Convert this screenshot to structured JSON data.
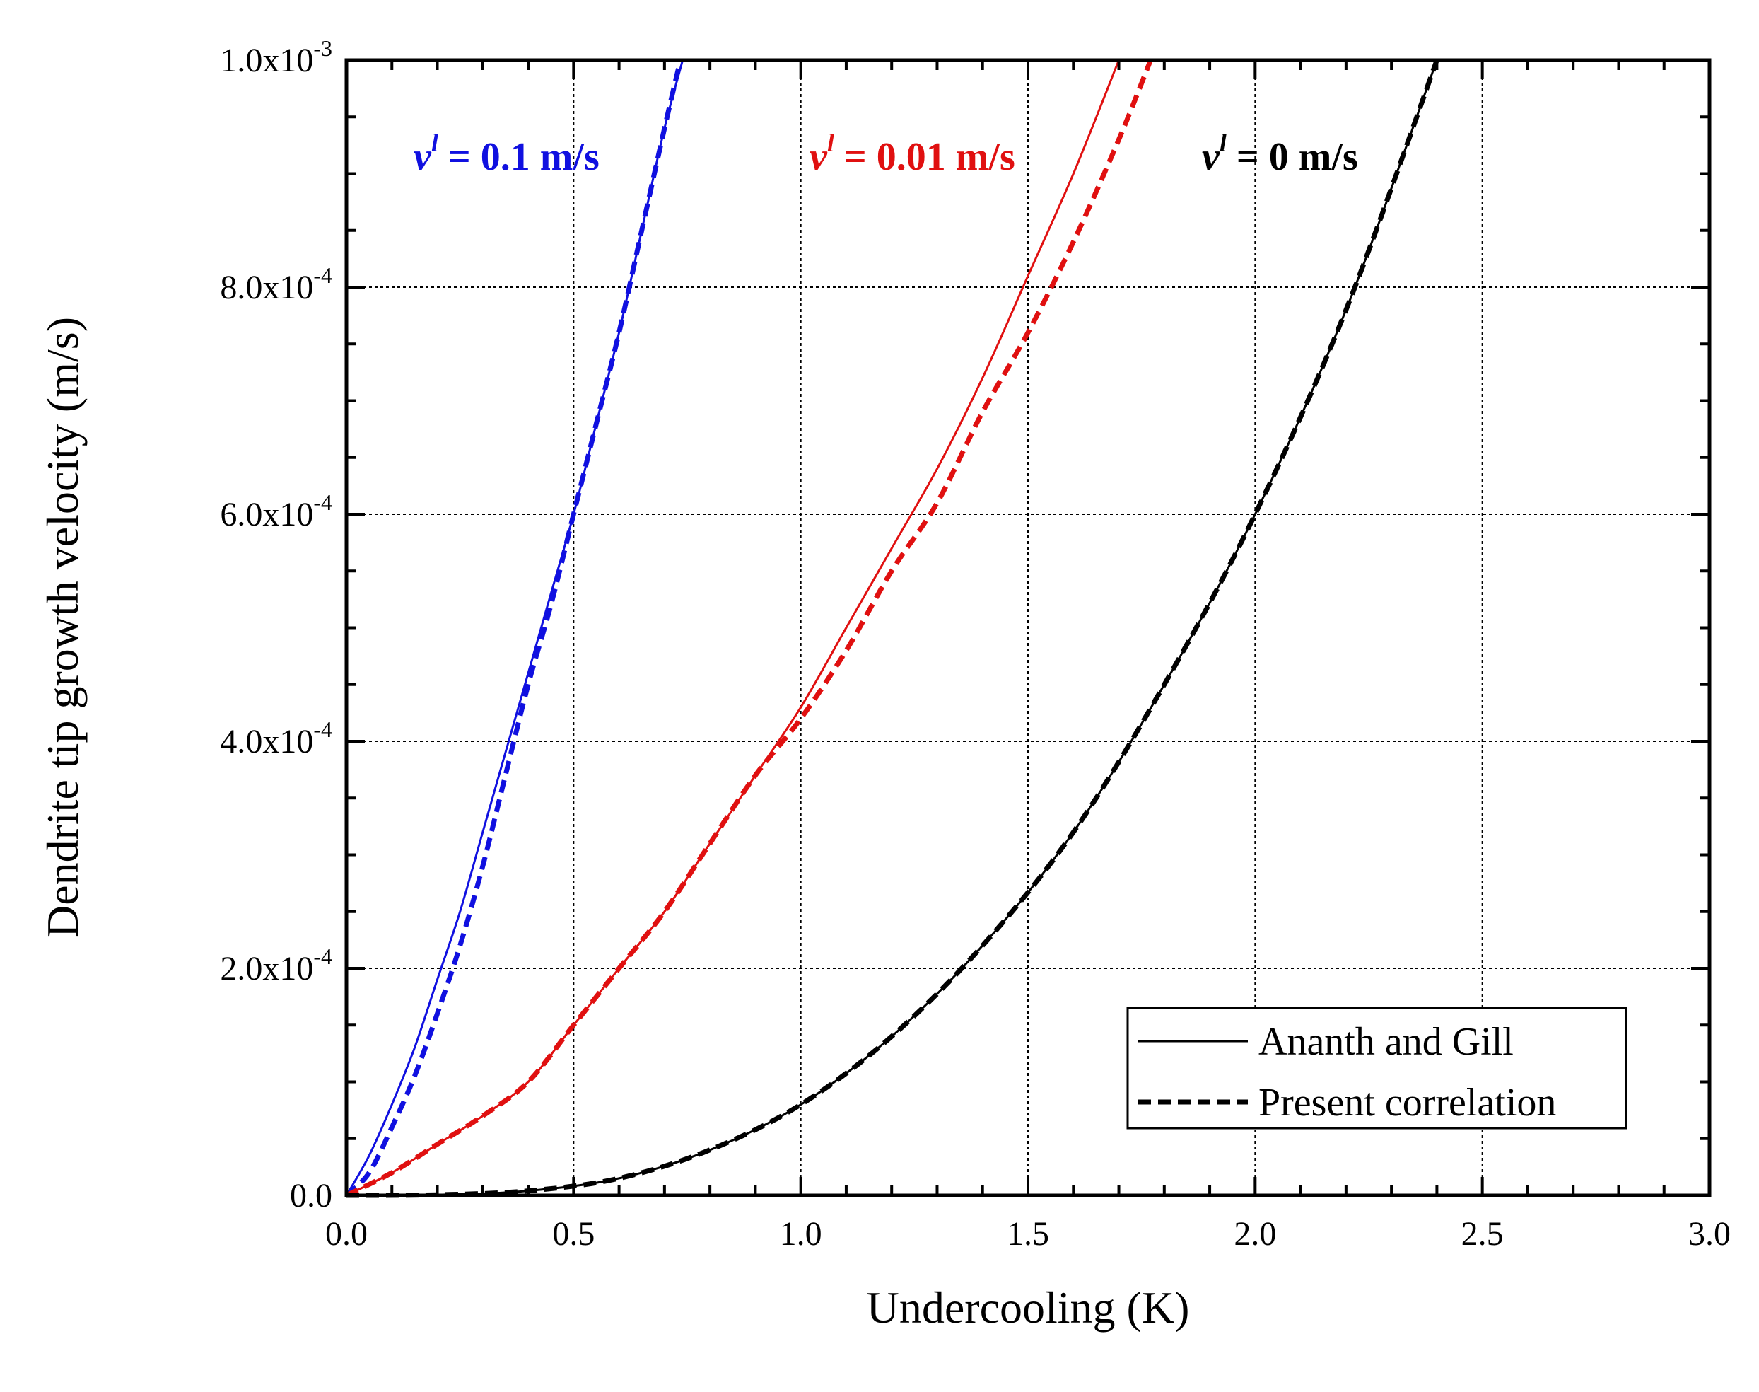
{
  "chart_data": {
    "type": "line",
    "title": "",
    "xlabel": "Undercooling (K)",
    "ylabel": "Dendrite tip growth velocity (m/s)",
    "xlim": [
      0.0,
      3.0
    ],
    "ylim": [
      0.0,
      0.001
    ],
    "x_ticks": [
      0.0,
      0.5,
      1.0,
      1.5,
      2.0,
      2.5,
      3.0
    ],
    "x_tick_labels": [
      "0.0",
      "0.5",
      "1.0",
      "1.5",
      "2.0",
      "2.5",
      "3.0"
    ],
    "y_ticks": [
      0.0,
      0.0002,
      0.0004,
      0.0006,
      0.0008,
      0.001
    ],
    "y_tick_labels": [
      {
        "mantissa": "0.0",
        "exponent": ""
      },
      {
        "mantissa": "2.0x10",
        "exponent": "-4"
      },
      {
        "mantissa": "4.0x10",
        "exponent": "-4"
      },
      {
        "mantissa": "6.0x10",
        "exponent": "-4"
      },
      {
        "mantissa": "8.0x10",
        "exponent": "-4"
      },
      {
        "mantissa": "1.0x10",
        "exponent": "-3"
      }
    ],
    "grid": true,
    "legend": {
      "position": "bottom-right",
      "entries": [
        {
          "label": "Ananth and Gill",
          "style": "solid"
        },
        {
          "label": "Present correlation",
          "style": "dashed"
        }
      ]
    },
    "series": [
      {
        "name": "v^l = 0.1 m/s, Ananth and Gill",
        "group": "v01",
        "style": "solid",
        "color": "#1010e0",
        "x": [
          0.0,
          0.05,
          0.1,
          0.15,
          0.2,
          0.25,
          0.3,
          0.35,
          0.4,
          0.45,
          0.5,
          0.55,
          0.6,
          0.65,
          0.7,
          0.74
        ],
        "y": [
          0.0,
          3.5e-05,
          8e-05,
          0.00013,
          0.00019,
          0.00025,
          0.00032,
          0.00039,
          0.00046,
          0.00053,
          0.0006,
          0.00068,
          0.00076,
          0.00085,
          0.00094,
          0.001
        ]
      },
      {
        "name": "v^l = 0.1 m/s, Present correlation",
        "group": "v01",
        "style": "dashed",
        "color": "#1010e0",
        "x": [
          0.0,
          0.05,
          0.1,
          0.15,
          0.2,
          0.25,
          0.3,
          0.35,
          0.4,
          0.45,
          0.5,
          0.55,
          0.6,
          0.65,
          0.7,
          0.735
        ],
        "y": [
          0.0,
          2e-05,
          6e-05,
          0.000105,
          0.00016,
          0.00022,
          0.00029,
          0.00037,
          0.00045,
          0.00052,
          0.0006,
          0.00068,
          0.00076,
          0.00085,
          0.00094,
          0.001
        ]
      },
      {
        "name": "v^l = 0.01 m/s, Ananth and Gill",
        "group": "v001",
        "style": "solid",
        "color": "#e01010",
        "x": [
          0.0,
          0.1,
          0.2,
          0.3,
          0.4,
          0.5,
          0.6,
          0.7,
          0.8,
          0.9,
          1.0,
          1.1,
          1.2,
          1.3,
          1.4,
          1.5,
          1.6,
          1.7
        ],
        "y": [
          0.0,
          2e-05,
          4.5e-05,
          7e-05,
          0.0001,
          0.00015,
          0.0002,
          0.00025,
          0.00031,
          0.00037,
          0.00043,
          0.0005,
          0.00057,
          0.00064,
          0.00072,
          0.00081,
          0.0009,
          0.001
        ]
      },
      {
        "name": "v^l = 0.01 m/s, Present correlation",
        "group": "v001",
        "style": "dashed",
        "color": "#e01010",
        "x": [
          0.0,
          0.1,
          0.2,
          0.3,
          0.4,
          0.5,
          0.6,
          0.7,
          0.8,
          0.9,
          1.0,
          1.1,
          1.2,
          1.3,
          1.4,
          1.5,
          1.6,
          1.7,
          1.77
        ],
        "y": [
          0.0,
          2e-05,
          4.5e-05,
          7e-05,
          0.0001,
          0.00015,
          0.0002,
          0.00025,
          0.00031,
          0.00037,
          0.00042,
          0.00048,
          0.00055,
          0.00061,
          0.00069,
          0.00076,
          0.00084,
          0.00093,
          0.001
        ]
      },
      {
        "name": "v^l = 0 m/s, Ananth and Gill",
        "group": "v0",
        "style": "solid",
        "color": "#000000",
        "x": [
          0.0,
          0.2,
          0.4,
          0.6,
          0.8,
          1.0,
          1.2,
          1.4,
          1.6,
          1.8,
          2.0,
          2.2,
          2.4
        ],
        "y": [
          0.0,
          5e-07,
          4e-06,
          1.5e-05,
          4e-05,
          8e-05,
          0.00014,
          0.00022,
          0.00032,
          0.00045,
          0.0006,
          0.00078,
          0.001
        ]
      },
      {
        "name": "v^l = 0 m/s, Present correlation",
        "group": "v0",
        "style": "dashed",
        "color": "#000000",
        "x": [
          0.0,
          0.2,
          0.4,
          0.6,
          0.8,
          1.0,
          1.2,
          1.4,
          1.6,
          1.8,
          2.0,
          2.2,
          2.4
        ],
        "y": [
          0.0,
          5e-07,
          4e-06,
          1.5e-05,
          4e-05,
          8e-05,
          0.00014,
          0.00022,
          0.00032,
          0.00045,
          0.0006,
          0.00078,
          0.001
        ]
      }
    ],
    "annotations": [
      {
        "id": "v01",
        "symbol": "v",
        "superscript": "l",
        "text": " = 0.1 m/s",
        "color": "#1010e0"
      },
      {
        "id": "v001",
        "symbol": "v",
        "superscript": "l",
        "text": " = 0.01 m/s",
        "color": "#e01010"
      },
      {
        "id": "v0",
        "symbol": "v",
        "superscript": "l",
        "text": " = 0 m/s",
        "color": "#000000"
      }
    ]
  }
}
